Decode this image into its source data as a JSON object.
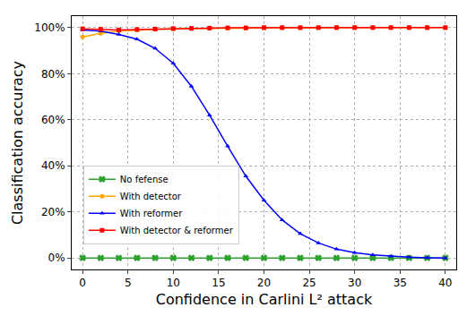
{
  "chart_data": {
    "type": "line",
    "x_label": "Confidence in Carlini L² attack",
    "y_label": "Classification accuracy",
    "x": [
      0,
      2,
      4,
      6,
      8,
      10,
      12,
      14,
      16,
      18,
      20,
      22,
      24,
      26,
      28,
      30,
      32,
      34,
      36,
      38,
      40
    ],
    "series": [
      {
        "name": "No fefense",
        "color": "#2ca02c",
        "marker": "x",
        "values": [
          0,
          0,
          0,
          0,
          0,
          0,
          0,
          0,
          0,
          0,
          0,
          0,
          0,
          0,
          0,
          0,
          0,
          0,
          0,
          0,
          0
        ]
      },
      {
        "name": "With detector",
        "color": "#ffa500",
        "marker": "circle",
        "values": [
          96,
          97.5,
          98.5,
          99,
          99.3,
          99.5,
          99.6,
          99.7,
          99.8,
          99.8,
          99.9,
          99.9,
          99.9,
          100,
          100,
          100,
          100,
          100,
          100,
          100,
          100
        ]
      },
      {
        "name": "With reformer",
        "color": "#0000ff",
        "marker": "triangle-up",
        "values": [
          99,
          98.5,
          97,
          95,
          91,
          84.5,
          74.5,
          62,
          48.5,
          35.5,
          25,
          16.5,
          10.5,
          6.5,
          3.8,
          2.3,
          1.3,
          0.7,
          0.3,
          0.1,
          0
        ]
      },
      {
        "name": "With detector & reformer",
        "color": "#ff0000",
        "marker": "square",
        "values": [
          99.5,
          99.3,
          99,
          99.2,
          99.4,
          99.6,
          99.7,
          99.8,
          99.9,
          99.9,
          100,
          100,
          100,
          100,
          100,
          100,
          100,
          100,
          100,
          100,
          100
        ]
      }
    ],
    "xlim": [
      -1.2,
      41.2
    ],
    "xticks": [
      0,
      5,
      10,
      15,
      20,
      25,
      30,
      35,
      40
    ],
    "ylim": [
      -5,
      105
    ],
    "yticks": [
      {
        "value": 0,
        "label": "0%"
      },
      {
        "value": 20,
        "label": "20%"
      },
      {
        "value": 40,
        "label": "40%"
      },
      {
        "value": 60,
        "label": "60%"
      },
      {
        "value": 80,
        "label": "80%"
      },
      {
        "value": 100,
        "label": "100%"
      }
    ],
    "grid": true,
    "legend": "lower left"
  }
}
